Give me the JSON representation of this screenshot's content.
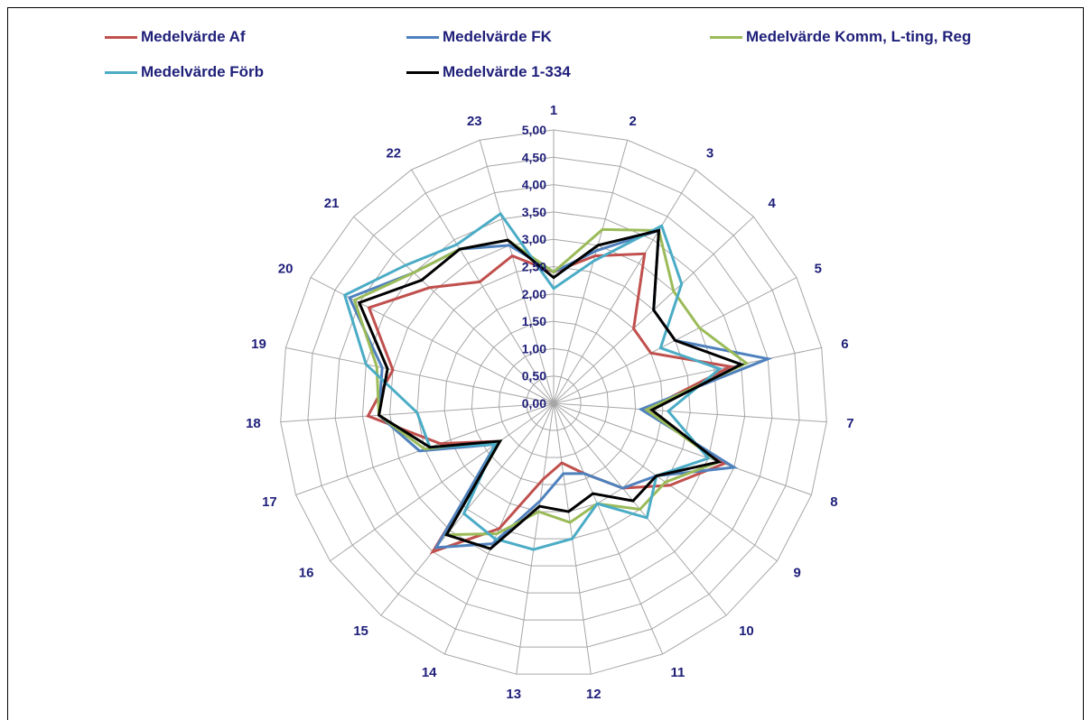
{
  "chart_data": {
    "type": "radar",
    "title": "",
    "categories": [
      "1",
      "2",
      "3",
      "4",
      "5",
      "6",
      "7",
      "8",
      "9",
      "10",
      "11",
      "12",
      "13",
      "14",
      "15",
      "16",
      "17",
      "18",
      "19",
      "20",
      "21",
      "22",
      "23"
    ],
    "rlim": [
      0,
      5
    ],
    "ticks": [
      "0,00",
      "0,50",
      "1,00",
      "1,50",
      "2,00",
      "2,50",
      "3,00",
      "3,50",
      "4,00",
      "4,50",
      "5,00"
    ],
    "grid": true,
    "legend_position": "top",
    "series": [
      {
        "name": "Medelvärde Af",
        "color": "#c0504d",
        "values": [
          2.4,
          2.8,
          3.2,
          2.0,
          2.0,
          3.3,
          1.7,
          3.3,
          2.6,
          2.0,
          1.4,
          1.1,
          1.4,
          2.5,
          3.5,
          1.2,
          2.2,
          3.4,
          3.0,
          3.8,
          3.1,
          2.6,
          2.8
        ]
      },
      {
        "name": "Medelvärde FK",
        "color": "#4f81bd",
        "values": [
          2.4,
          2.9,
          3.7,
          2.5,
          2.5,
          4.0,
          1.6,
          3.5,
          2.3,
          2.0,
          1.4,
          1.3,
          1.8,
          2.8,
          3.4,
          1.3,
          2.6,
          3.2,
          3.2,
          4.2,
          3.5,
          3.3,
          3.0
        ]
      },
      {
        "name": "Medelvärde Komm, L-ting, Reg",
        "color": "#9bbb59",
        "values": [
          2.4,
          3.3,
          3.7,
          3.0,
          3.0,
          3.6,
          1.7,
          3.2,
          2.5,
          2.5,
          2.0,
          2.2,
          2.0,
          2.6,
          3.1,
          1.2,
          2.5,
          3.2,
          3.3,
          4.1,
          3.5,
          3.3,
          3.1
        ]
      },
      {
        "name": "Medelvärde Förb",
        "color": "#4bacc6",
        "values": [
          2.1,
          2.7,
          3.8,
          3.2,
          2.2,
          3.1,
          2.1,
          3.0,
          2.3,
          2.7,
          2.0,
          2.5,
          2.7,
          2.7,
          2.6,
          1.3,
          2.4,
          2.5,
          3.5,
          4.3,
          3.7,
          3.4,
          3.6
        ]
      },
      {
        "name": "Medelvärde 1-334",
        "color": "#000000",
        "values": [
          2.3,
          3.0,
          3.7,
          2.5,
          2.5,
          3.5,
          1.8,
          3.2,
          2.3,
          2.3,
          1.8,
          2.0,
          1.9,
          2.9,
          3.1,
          1.2,
          2.4,
          3.2,
          3.1,
          4.0,
          3.3,
          3.3,
          3.1
        ]
      }
    ]
  }
}
